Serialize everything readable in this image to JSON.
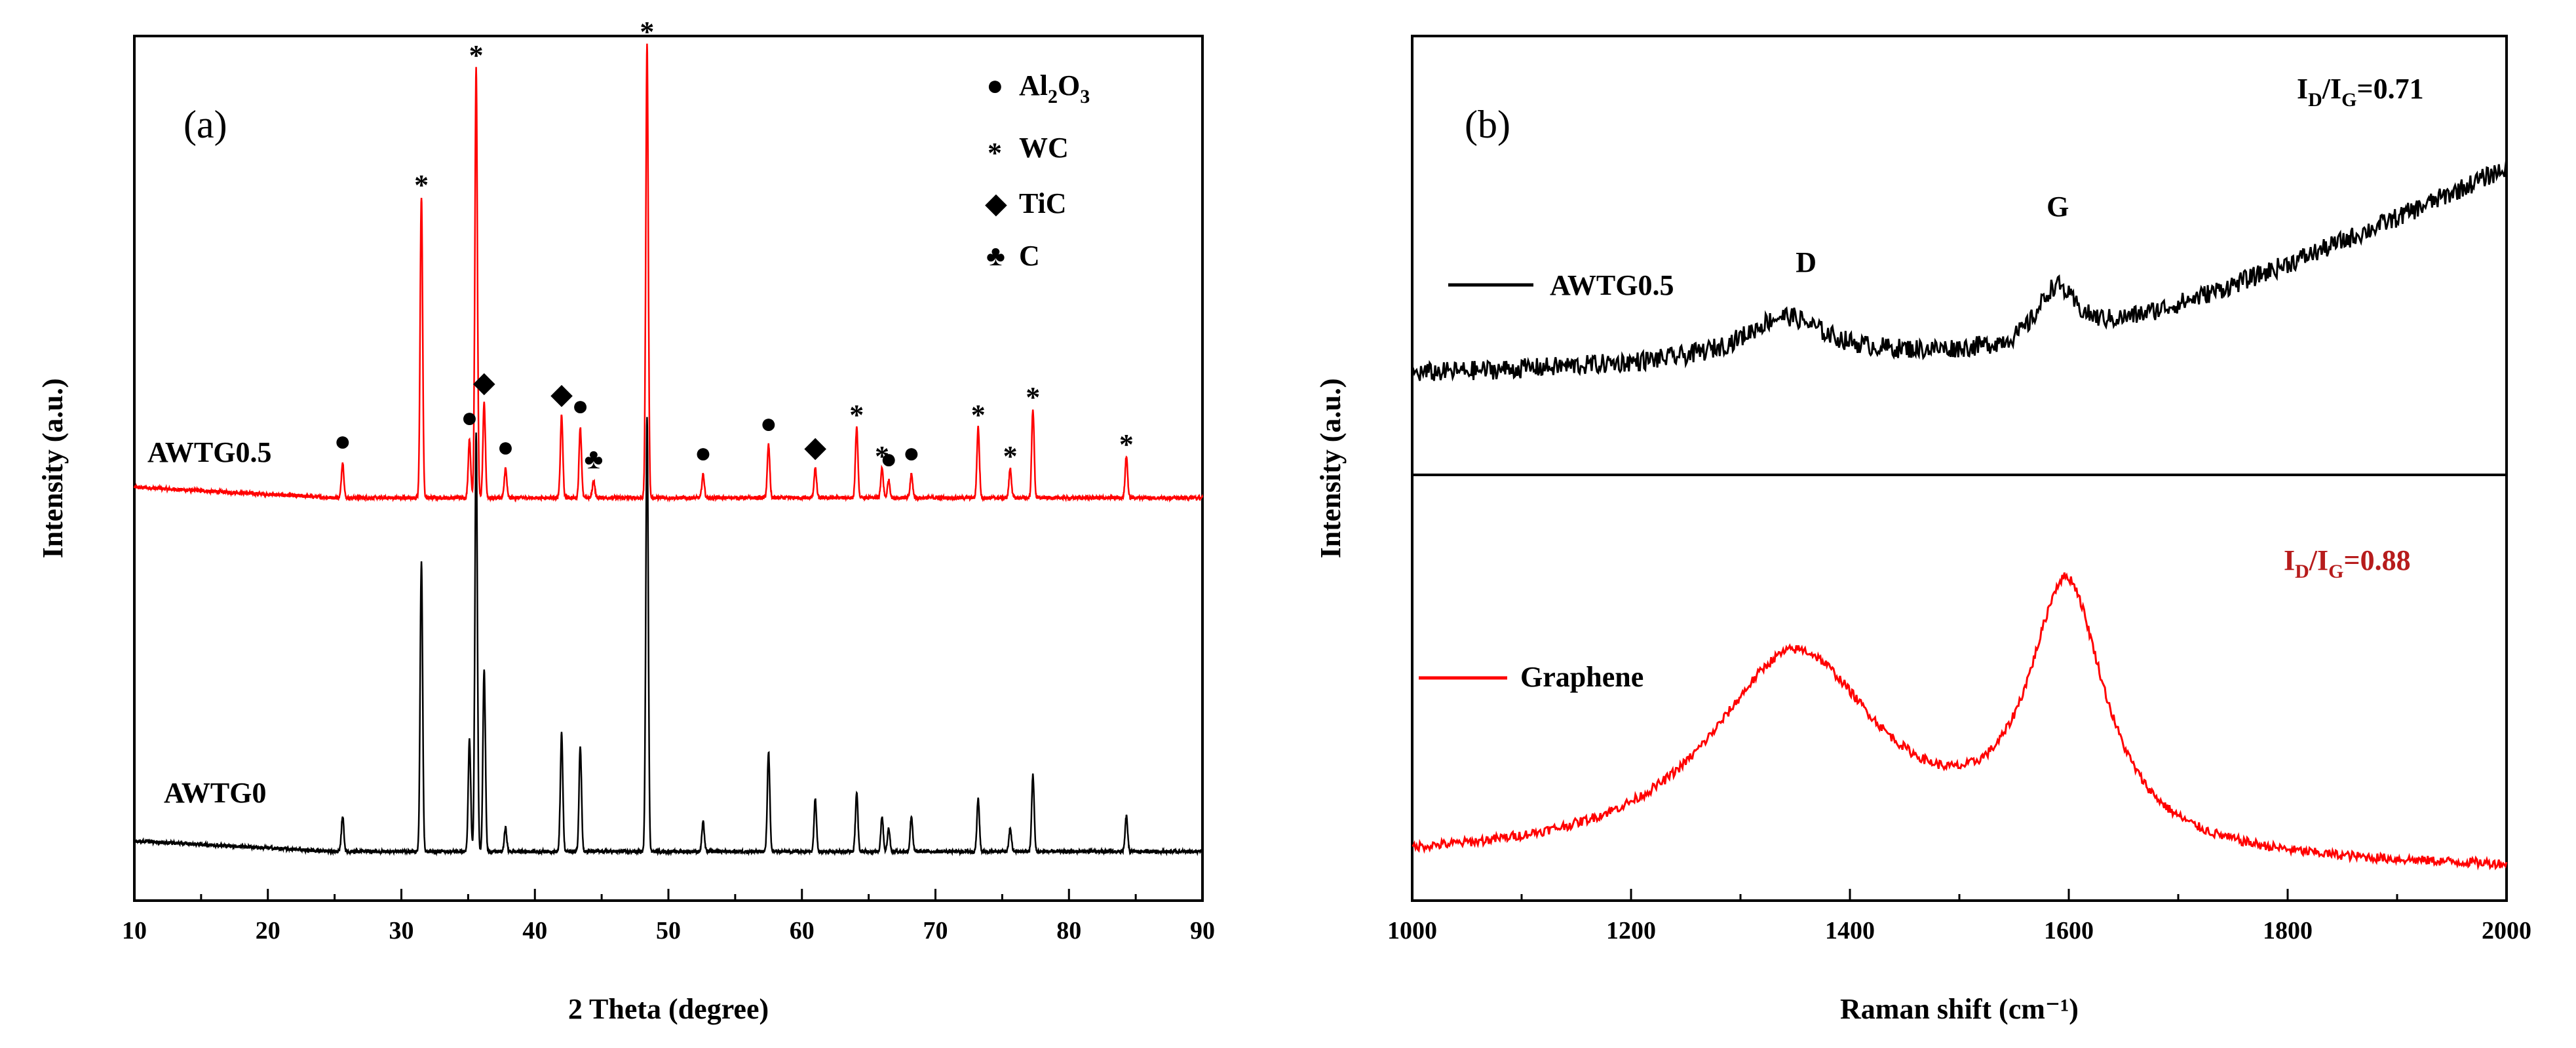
{
  "chart_data": [
    {
      "type": "line",
      "panel_label": "(a)",
      "xlabel": "2 Theta (degree)",
      "ylabel": "Intensity (a.u.)",
      "xlim": [
        10,
        90
      ],
      "xticks": [
        "10",
        "20",
        "30",
        "40",
        "50",
        "60",
        "70",
        "80",
        "90"
      ],
      "legend": [
        {
          "symbol": "●",
          "name_main": "Al",
          "sub1": "2",
          "mid": "O",
          "sub2": "3"
        },
        {
          "symbol": "*",
          "name": "WC"
        },
        {
          "symbol": "◆",
          "name": "TiC"
        },
        {
          "symbol": "♣",
          "name": "C"
        }
      ],
      "series": [
        {
          "name": "AWTG0.5",
          "color": "#ff0000",
          "baseline": 0.08,
          "peaks": [
            {
              "x": 25.6,
              "h": 0.06
            },
            {
              "x": 31.5,
              "h": 0.51
            },
            {
              "x": 35.1,
              "h": 0.1
            },
            {
              "x": 35.6,
              "h": 0.73
            },
            {
              "x": 36.2,
              "h": 0.16
            },
            {
              "x": 37.8,
              "h": 0.05
            },
            {
              "x": 42.0,
              "h": 0.14
            },
            {
              "x": 43.4,
              "h": 0.12
            },
            {
              "x": 44.4,
              "h": 0.03
            },
            {
              "x": 48.4,
              "h": 0.77
            },
            {
              "x": 52.6,
              "h": 0.04
            },
            {
              "x": 57.5,
              "h": 0.09
            },
            {
              "x": 61.0,
              "h": 0.05
            },
            {
              "x": 64.1,
              "h": 0.12
            },
            {
              "x": 66.0,
              "h": 0.05
            },
            {
              "x": 66.5,
              "h": 0.03
            },
            {
              "x": 68.2,
              "h": 0.04
            },
            {
              "x": 73.2,
              "h": 0.12
            },
            {
              "x": 75.6,
              "h": 0.05
            },
            {
              "x": 77.3,
              "h": 0.15
            },
            {
              "x": 84.3,
              "h": 0.07
            }
          ]
        },
        {
          "name": "AWTG0",
          "color": "#000000",
          "baseline": 0.05,
          "peaks": [
            {
              "x": 25.6,
              "h": 0.06
            },
            {
              "x": 31.5,
              "h": 0.49
            },
            {
              "x": 35.1,
              "h": 0.19
            },
            {
              "x": 35.6,
              "h": 0.71
            },
            {
              "x": 36.2,
              "h": 0.31
            },
            {
              "x": 37.8,
              "h": 0.04
            },
            {
              "x": 42.0,
              "h": 0.2
            },
            {
              "x": 43.4,
              "h": 0.18
            },
            {
              "x": 48.4,
              "h": 0.74
            },
            {
              "x": 52.6,
              "h": 0.05
            },
            {
              "x": 57.5,
              "h": 0.17
            },
            {
              "x": 61.0,
              "h": 0.09
            },
            {
              "x": 64.1,
              "h": 0.1
            },
            {
              "x": 66.0,
              "h": 0.06
            },
            {
              "x": 66.5,
              "h": 0.04
            },
            {
              "x": 68.2,
              "h": 0.06
            },
            {
              "x": 73.2,
              "h": 0.09
            },
            {
              "x": 75.6,
              "h": 0.04
            },
            {
              "x": 77.3,
              "h": 0.13
            },
            {
              "x": 84.3,
              "h": 0.06
            }
          ]
        }
      ],
      "peak_markers": [
        {
          "x": 25.6,
          "symbol": "●"
        },
        {
          "x": 31.5,
          "symbol": "*"
        },
        {
          "x": 35.1,
          "symbol": "●"
        },
        {
          "x": 35.6,
          "symbol": "*"
        },
        {
          "x": 36.2,
          "symbol": "◆"
        },
        {
          "x": 37.8,
          "symbol": "●"
        },
        {
          "x": 42.0,
          "symbol": "◆"
        },
        {
          "x": 43.4,
          "symbol": "●"
        },
        {
          "x": 44.4,
          "symbol": "♣"
        },
        {
          "x": 48.4,
          "symbol": "*"
        },
        {
          "x": 52.6,
          "symbol": "●"
        },
        {
          "x": 57.5,
          "symbol": "●"
        },
        {
          "x": 61.0,
          "symbol": "◆"
        },
        {
          "x": 64.1,
          "symbol": "*"
        },
        {
          "x": 66.0,
          "symbol": "*"
        },
        {
          "x": 66.5,
          "symbol": "●"
        },
        {
          "x": 68.2,
          "symbol": "●"
        },
        {
          "x": 73.2,
          "symbol": "*"
        },
        {
          "x": 75.6,
          "symbol": "*"
        },
        {
          "x": 77.3,
          "symbol": "*"
        },
        {
          "x": 84.3,
          "symbol": "*"
        }
      ]
    },
    {
      "type": "line",
      "panel_label": "(b)",
      "xlabel": "Raman shift (cm⁻¹)",
      "ylabel": "Intensity (a.u.)",
      "xlim": [
        1000,
        2000
      ],
      "xticks": [
        "1000",
        "1200",
        "1400",
        "1600",
        "1800",
        "2000"
      ],
      "band_labels": [
        {
          "x": 1360,
          "text": "D"
        },
        {
          "x": 1590,
          "text": "G"
        }
      ],
      "series": [
        {
          "name": "AWTG0.5",
          "color": "#000000",
          "ratio": {
            "I": "I",
            "D": "D",
            "G": "G",
            "slash": "/",
            "value": "=0.71"
          },
          "baseline_start": 0.23,
          "baseline_end": 0.32,
          "rise_start": 1550,
          "rise_end_add": 0.38,
          "peaks": [
            {
              "x": 1340,
              "h": 0.1,
              "w": 45
            },
            {
              "x": 1588,
              "h": 0.13,
              "w": 22
            }
          ]
        },
        {
          "name": "Graphene",
          "color": "#ff0000",
          "ratio": {
            "I": "I",
            "D": "D",
            "G": "G",
            "slash": "/",
            "value": "=0.88"
          },
          "ratio_color": "#b71c1c",
          "baseline_start": 0.09,
          "baseline_end": 0.07,
          "peaks": [
            {
              "x": 1350,
              "h": 0.49,
              "w": 95
            },
            {
              "x": 1598,
              "h": 0.62,
              "w": 42
            }
          ]
        }
      ]
    }
  ]
}
